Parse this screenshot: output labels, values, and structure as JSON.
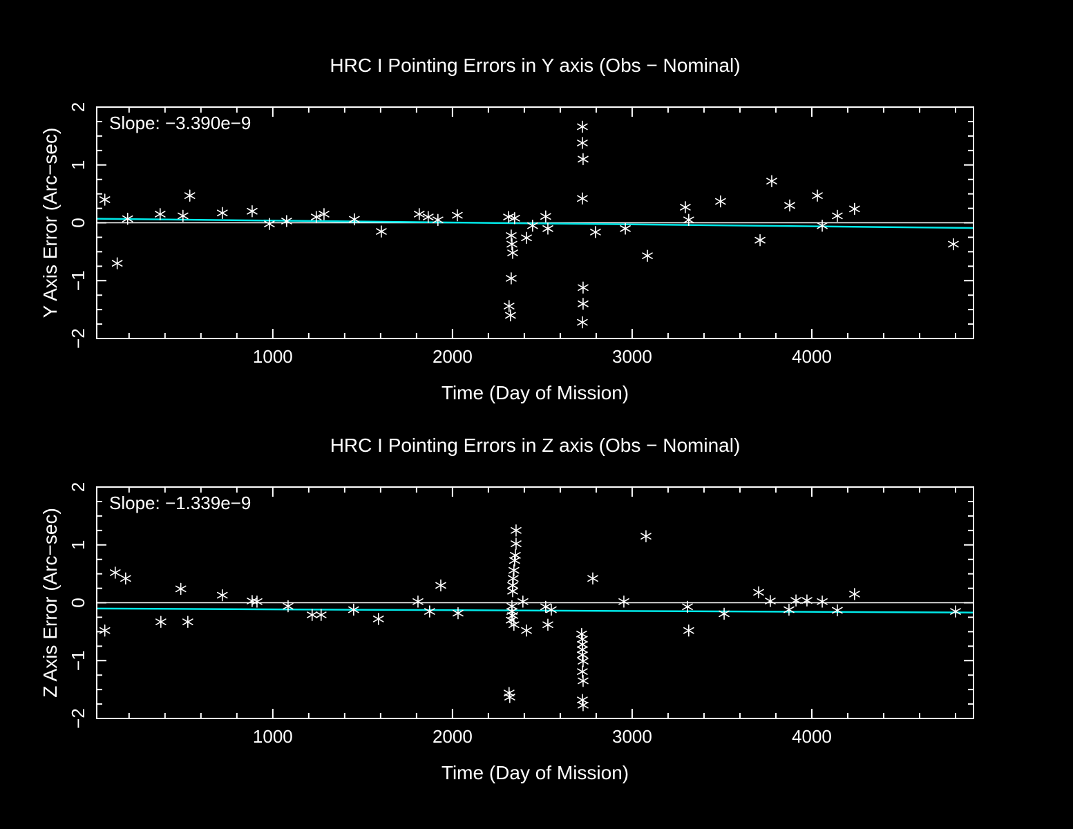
{
  "page": {
    "background": "#000000"
  },
  "colors": {
    "axis": "#ffffff",
    "text": "#ffffff",
    "marker": "#ffffff",
    "trend": "#00e9e9",
    "zero_line": "#ffffff"
  },
  "chart_data": [
    {
      "type": "scatter",
      "title": "HRC I Pointing Errors in Y axis (Obs − Nominal)",
      "xlabel": "Time (Day of Mission)",
      "ylabel": "Y Axis Error (Arc−sec)",
      "slope_label": "Slope: −3.390e−9",
      "marker": "asterisk",
      "legend": "none",
      "grid": false,
      "xlim": [
        20,
        4900
      ],
      "ylim": [
        -2,
        2
      ],
      "xtick_values": [
        1000,
        2000,
        3000,
        4000
      ],
      "xtick_labels": [
        "1000",
        "2000",
        "3000",
        "4000"
      ],
      "ytick_values": [
        -2,
        -1,
        0,
        1,
        2
      ],
      "ytick_labels": [
        "−2",
        "−1",
        "0",
        "1",
        "2"
      ],
      "x_minor_step": 200,
      "y_minor_step": 0.25,
      "zero_line_y": 0,
      "trend_line": {
        "x0": 20,
        "y0": 0.07,
        "x1": 4900,
        "y1": -0.09
      },
      "points": [
        [
          65,
          0.4
        ],
        [
          134,
          -0.7
        ],
        [
          192,
          0.07
        ],
        [
          373,
          0.15
        ],
        [
          500,
          0.12
        ],
        [
          538,
          0.47
        ],
        [
          719,
          0.17
        ],
        [
          885,
          0.2
        ],
        [
          981,
          -0.02
        ],
        [
          1077,
          0.03
        ],
        [
          1242,
          0.1
        ],
        [
          1285,
          0.15
        ],
        [
          1454,
          0.06
        ],
        [
          1604,
          -0.15
        ],
        [
          1815,
          0.15
        ],
        [
          1865,
          0.1
        ],
        [
          1919,
          0.05
        ],
        [
          2027,
          0.13
        ],
        [
          2312,
          0.1
        ],
        [
          2346,
          0.08
        ],
        [
          2327,
          -0.22
        ],
        [
          2331,
          -0.37
        ],
        [
          2335,
          -0.52
        ],
        [
          2327,
          -0.96
        ],
        [
          2315,
          -1.44
        ],
        [
          2323,
          -1.6
        ],
        [
          2412,
          -0.26
        ],
        [
          2446,
          -0.05
        ],
        [
          2519,
          0.11
        ],
        [
          2531,
          -0.1
        ],
        [
          2723,
          1.66
        ],
        [
          2723,
          1.38
        ],
        [
          2727,
          1.1
        ],
        [
          2723,
          0.42
        ],
        [
          2727,
          -1.12
        ],
        [
          2727,
          -1.4
        ],
        [
          2723,
          -1.72
        ],
        [
          2796,
          -0.16
        ],
        [
          2962,
          -0.1
        ],
        [
          3085,
          -0.57
        ],
        [
          3296,
          0.27
        ],
        [
          3315,
          0.05
        ],
        [
          3492,
          0.37
        ],
        [
          3712,
          -0.3
        ],
        [
          3777,
          0.72
        ],
        [
          3877,
          0.3
        ],
        [
          4031,
          0.47
        ],
        [
          4058,
          -0.05
        ],
        [
          4142,
          0.12
        ],
        [
          4238,
          0.24
        ],
        [
          4788,
          -0.37
        ]
      ]
    },
    {
      "type": "scatter",
      "title": "HRC I Pointing Errors in  Z axis (Obs − Nominal)",
      "xlabel": "Time (Day of Mission)",
      "ylabel": "Z Axis Error (Arc−sec)",
      "slope_label": "Slope: −1.339e−9",
      "marker": "asterisk",
      "legend": "none",
      "grid": false,
      "xlim": [
        20,
        4900
      ],
      "ylim": [
        -2,
        2
      ],
      "xtick_values": [
        1000,
        2000,
        3000,
        4000
      ],
      "xtick_labels": [
        "1000",
        "2000",
        "3000",
        "4000"
      ],
      "ytick_values": [
        -2,
        -1,
        0,
        1,
        2
      ],
      "ytick_labels": [
        "−2",
        "−1",
        "0",
        "1",
        "2"
      ],
      "x_minor_step": 200,
      "y_minor_step": 0.25,
      "zero_line_y": 0,
      "trend_line": {
        "x0": 20,
        "y0": -0.1,
        "x1": 4900,
        "y1": -0.17
      },
      "points": [
        [
          65,
          -0.48
        ],
        [
          123,
          0.52
        ],
        [
          181,
          0.42
        ],
        [
          377,
          -0.33
        ],
        [
          488,
          0.24
        ],
        [
          527,
          -0.33
        ],
        [
          719,
          0.13
        ],
        [
          885,
          0.03
        ],
        [
          912,
          0.02
        ],
        [
          1085,
          -0.06
        ],
        [
          1219,
          -0.21
        ],
        [
          1269,
          -0.21
        ],
        [
          1450,
          -0.12
        ],
        [
          1588,
          -0.28
        ],
        [
          1808,
          0.02
        ],
        [
          1873,
          -0.15
        ],
        [
          1935,
          0.3
        ],
        [
          2031,
          -0.18
        ],
        [
          2354,
          1.25
        ],
        [
          2354,
          1.02
        ],
        [
          2350,
          0.82
        ],
        [
          2346,
          0.73
        ],
        [
          2342,
          0.56
        ],
        [
          2338,
          0.42
        ],
        [
          2335,
          0.3
        ],
        [
          2335,
          0.2
        ],
        [
          2331,
          -0.06
        ],
        [
          2331,
          -0.15
        ],
        [
          2335,
          -0.22
        ],
        [
          2327,
          -0.3
        ],
        [
          2342,
          -0.38
        ],
        [
          2315,
          -1.56
        ],
        [
          2319,
          -1.63
        ],
        [
          2392,
          0.02
        ],
        [
          2412,
          -0.48
        ],
        [
          2519,
          -0.07
        ],
        [
          2531,
          -0.38
        ],
        [
          2550,
          -0.12
        ],
        [
          2719,
          -0.54
        ],
        [
          2723,
          -0.63
        ],
        [
          2723,
          -0.72
        ],
        [
          2723,
          -0.81
        ],
        [
          2723,
          -0.9
        ],
        [
          2727,
          -1.01
        ],
        [
          2723,
          -1.19
        ],
        [
          2727,
          -1.35
        ],
        [
          2723,
          -1.68
        ],
        [
          2727,
          -1.77
        ],
        [
          2781,
          0.42
        ],
        [
          2954,
          0.02
        ],
        [
          3077,
          1.15
        ],
        [
          3308,
          -0.07
        ],
        [
          3315,
          -0.48
        ],
        [
          3512,
          -0.19
        ],
        [
          3704,
          0.18
        ],
        [
          3769,
          0.03
        ],
        [
          3873,
          -0.12
        ],
        [
          3912,
          0.04
        ],
        [
          3973,
          0.04
        ],
        [
          4058,
          0.02
        ],
        [
          4142,
          -0.13
        ],
        [
          4238,
          0.15
        ],
        [
          4800,
          -0.15
        ]
      ]
    }
  ]
}
